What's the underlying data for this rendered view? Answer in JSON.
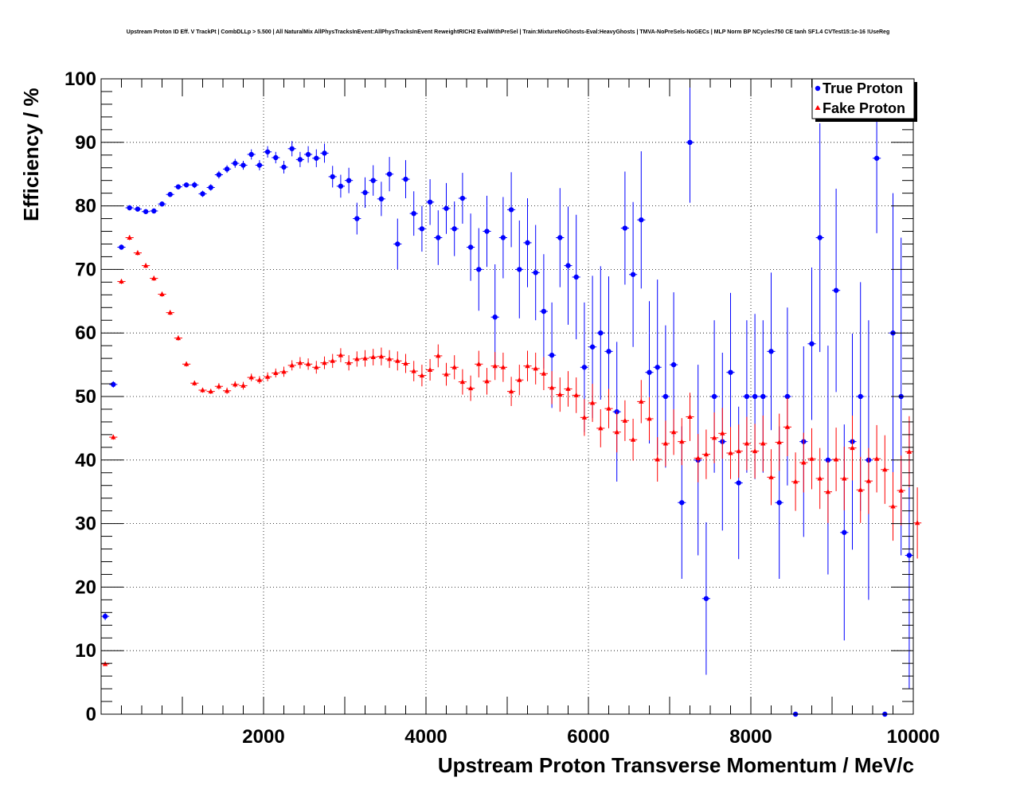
{
  "chart_data": {
    "type": "scatter",
    "title": "Upstream Proton ID Eff. V TrackPt | CombDLLp > 5.500 | All NaturalMix AllPhysTracksInEvent:AllPhysTracksInEvent ReweightRICH2 EvalWithPreSel | Train:MixtureNoGhosts-Eval:HeavyGhosts | TMVA-NoPreSels-NoGECs | MLP Norm BP NCycles750 CE tanh SF1.4 CVTest15:1e-16 !UseReg",
    "xlabel": "Upstream Proton Transverse Momentum / MeV/c",
    "ylabel": "Efficiency / %",
    "xlim": [
      0,
      10000
    ],
    "ylim": [
      0,
      100
    ],
    "x_ticks": [
      2000,
      4000,
      6000,
      8000,
      10000
    ],
    "y_ticks": [
      0,
      10,
      20,
      30,
      40,
      50,
      60,
      70,
      80,
      90,
      100
    ],
    "grid": true,
    "legend_position": "top-right",
    "bin_width": 100,
    "series": [
      {
        "name": "True Proton",
        "color": "#0000ff",
        "marker": "circle",
        "x": [
          50,
          150,
          250,
          350,
          450,
          550,
          650,
          750,
          850,
          950,
          1050,
          1150,
          1250,
          1350,
          1450,
          1550,
          1650,
          1750,
          1850,
          1950,
          2050,
          2150,
          2250,
          2350,
          2450,
          2550,
          2650,
          2750,
          2850,
          2950,
          3050,
          3150,
          3250,
          3350,
          3450,
          3550,
          3650,
          3750,
          3850,
          3950,
          4050,
          4150,
          4250,
          4350,
          4450,
          4550,
          4650,
          4750,
          4850,
          4950,
          5050,
          5150,
          5250,
          5350,
          5450,
          5550,
          5650,
          5750,
          5850,
          5950,
          6050,
          6150,
          6250,
          6350,
          6450,
          6550,
          6650,
          6750,
          6850,
          6950,
          7050,
          7150,
          7250,
          7350,
          7450,
          7550,
          7650,
          7750,
          7850,
          7950,
          8050,
          8150,
          8250,
          8350,
          8450,
          8550,
          8650,
          8750,
          8850,
          8950,
          9050,
          9150,
          9250,
          9350,
          9450,
          9550,
          9650,
          9750,
          9850,
          9950
        ],
        "y": [
          15.4,
          51.9,
          73.5,
          79.7,
          79.5,
          79.1,
          79.2,
          80.3,
          81.8,
          83.0,
          83.3,
          83.3,
          81.9,
          82.9,
          84.9,
          85.8,
          86.7,
          86.4,
          88.1,
          86.4,
          88.5,
          87.6,
          86.1,
          89.0,
          87.3,
          88.1,
          87.5,
          88.3,
          84.6,
          83.1,
          84.0,
          78.0,
          82.1,
          84.0,
          81.1,
          85.0,
          74.0,
          84.2,
          78.8,
          76.4,
          80.6,
          75.0,
          79.6,
          76.4,
          81.2,
          73.5,
          70.0,
          76.0,
          62.5,
          75.0,
          79.4,
          70.0,
          74.2,
          69.5,
          63.4,
          56.5,
          75.0,
          70.6,
          68.8,
          54.6,
          57.8,
          60.0,
          57.1,
          47.6,
          76.5,
          69.2,
          77.8,
          53.8,
          54.6,
          50.0,
          55.0,
          33.3,
          90.0,
          40.0,
          18.2,
          50.0,
          42.9,
          53.8,
          36.4,
          50.0,
          50.0,
          50.0,
          57.1,
          33.3,
          50.0,
          0,
          42.9,
          58.3,
          75.0,
          40.0,
          66.7,
          28.6,
          42.9,
          50.0,
          40.0,
          87.5,
          0,
          60.0,
          50.0,
          25.0
        ],
        "err": [
          0.6,
          0.5,
          0.4,
          0.4,
          0.4,
          0.4,
          0.4,
          0.4,
          0.4,
          0.4,
          0.4,
          0.5,
          0.5,
          0.5,
          0.6,
          0.6,
          0.7,
          0.7,
          0.8,
          0.8,
          0.9,
          0.9,
          1.0,
          1.2,
          1.2,
          1.3,
          1.4,
          1.5,
          1.7,
          1.8,
          2.0,
          2.5,
          2.4,
          2.4,
          2.7,
          2.7,
          4.0,
          3.0,
          3.5,
          3.6,
          3.6,
          4.3,
          4.0,
          4.3,
          4.0,
          5.3,
          6.5,
          5.6,
          8.3,
          6.4,
          5.9,
          7.7,
          7.0,
          7.5,
          9.0,
          8.3,
          7.8,
          9.3,
          9.8,
          10.2,
          11.2,
          10.5,
          11.8,
          11.0,
          8.9,
          11.4,
          10.8,
          11.2,
          13.8,
          11.2,
          11.4,
          12.0,
          9.5,
          15.0,
          12.0,
          12.0,
          14.0,
          12.5,
          12.0,
          12.0,
          13.0,
          12.0,
          12.4,
          12.0,
          14.0,
          0,
          15.0,
          12.0,
          18.0,
          18.0,
          16.0,
          17.0,
          17.0,
          18.0,
          22.0,
          11.8,
          0,
          22.0,
          25.0,
          21.0
        ]
      },
      {
        "name": "Fake Proton",
        "color": "#ff0000",
        "marker": "triangle",
        "x": [
          50,
          150,
          250,
          350,
          450,
          550,
          650,
          750,
          850,
          950,
          1050,
          1150,
          1250,
          1350,
          1450,
          1550,
          1650,
          1750,
          1850,
          1950,
          2050,
          2150,
          2250,
          2350,
          2450,
          2550,
          2650,
          2750,
          2850,
          2950,
          3050,
          3150,
          3250,
          3350,
          3450,
          3550,
          3650,
          3750,
          3850,
          3950,
          4050,
          4150,
          4250,
          4350,
          4450,
          4550,
          4650,
          4750,
          4850,
          4950,
          5050,
          5150,
          5250,
          5350,
          5450,
          5550,
          5650,
          5750,
          5850,
          5950,
          6050,
          6150,
          6250,
          6350,
          6450,
          6550,
          6650,
          6750,
          6850,
          6950,
          7050,
          7150,
          7250,
          7350,
          7450,
          7550,
          7650,
          7750,
          7850,
          7950,
          8050,
          8150,
          8250,
          8350,
          8450,
          8550,
          8650,
          8750,
          8850,
          8950,
          9050,
          9150,
          9250,
          9350,
          9450,
          9550,
          9650,
          9750,
          9850,
          9950,
          10050
        ],
        "y": [
          7.9,
          43.6,
          68.1,
          75.0,
          72.6,
          70.6,
          68.6,
          66.1,
          63.2,
          59.2,
          55.1,
          52.1,
          51.0,
          50.8,
          51.6,
          50.9,
          51.9,
          51.7,
          53.0,
          52.6,
          53.1,
          53.7,
          53.9,
          54.9,
          55.3,
          55.1,
          54.6,
          55.3,
          55.6,
          56.5,
          55.3,
          55.9,
          56.0,
          56.2,
          56.3,
          55.9,
          55.6,
          55.2,
          54.0,
          53.3,
          54.2,
          56.4,
          53.5,
          54.6,
          52.3,
          51.3,
          55.1,
          52.4,
          54.8,
          54.6,
          50.8,
          52.6,
          54.8,
          54.4,
          53.6,
          51.4,
          50.3,
          51.2,
          50.2,
          46.7,
          49.0,
          45.0,
          48.1,
          44.4,
          46.2,
          43.2,
          49.2,
          46.5,
          40.1,
          42.6,
          44.4,
          42.9,
          46.8,
          40.3,
          40.9,
          43.5,
          44.2,
          41.1,
          41.4,
          42.6,
          41.4,
          42.6,
          37.3,
          42.8,
          45.2,
          36.6,
          39.6,
          40.2,
          37.1,
          35.0,
          40.1,
          37.1,
          41.9,
          35.3,
          36.7,
          40.2,
          38.5,
          32.7,
          35.2,
          41.3,
          30.1
        ],
        "err": [
          0.3,
          0.4,
          0.4,
          0.4,
          0.4,
          0.4,
          0.4,
          0.4,
          0.4,
          0.4,
          0.4,
          0.4,
          0.4,
          0.4,
          0.5,
          0.5,
          0.5,
          0.6,
          0.6,
          0.6,
          0.7,
          0.7,
          0.8,
          0.8,
          0.9,
          0.9,
          1.0,
          1.0,
          1.1,
          1.1,
          1.2,
          1.2,
          1.3,
          1.3,
          1.4,
          1.4,
          1.5,
          1.5,
          1.6,
          1.7,
          1.7,
          1.8,
          1.8,
          1.9,
          2.0,
          2.0,
          2.1,
          2.1,
          2.2,
          2.3,
          2.3,
          2.4,
          2.4,
          2.5,
          2.6,
          2.6,
          2.7,
          2.8,
          2.8,
          2.9,
          3.0,
          3.0,
          3.1,
          3.2,
          3.2,
          3.3,
          3.4,
          3.4,
          3.5,
          3.6,
          3.6,
          3.7,
          3.8,
          3.8,
          3.9,
          4.0,
          4.0,
          4.1,
          4.2,
          4.2,
          4.3,
          4.4,
          4.4,
          4.5,
          4.6,
          4.6,
          4.7,
          4.8,
          4.8,
          4.9,
          5.0,
          5.0,
          5.1,
          5.2,
          5.2,
          5.3,
          5.4,
          5.4,
          5.5,
          5.6,
          5.6
        ]
      }
    ]
  }
}
